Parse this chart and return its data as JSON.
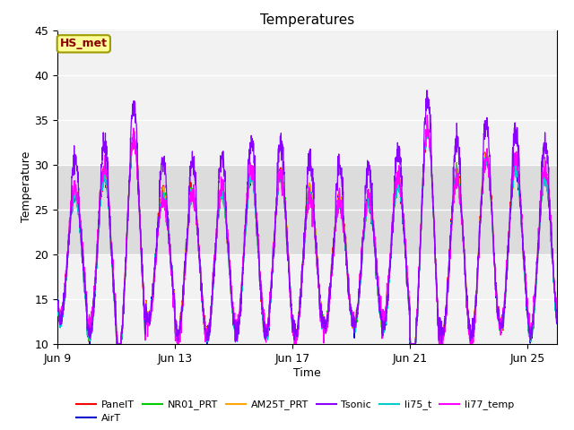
{
  "title": "Temperatures",
  "xlabel": "Time",
  "ylabel": "Temperature",
  "ylim": [
    10,
    45
  ],
  "y_ticks": [
    10,
    15,
    20,
    25,
    30,
    35,
    40,
    45
  ],
  "x_ticks_labels": [
    "Jun 9",
    "Jun 13",
    "Jun 17",
    "Jun 21",
    "Jun 25"
  ],
  "x_ticks_pos": [
    0,
    4,
    8,
    12,
    16
  ],
  "annotation_text": "HS_met",
  "annotation_color": "#8B0000",
  "annotation_bg": "#FFFF99",
  "annotation_border": "#9B9B00",
  "shaded_band": [
    20,
    30
  ],
  "shaded_color": "#DCDCDC",
  "plot_bg": "#F2F2F2",
  "series_colors": {
    "PanelT": "#FF0000",
    "AirT": "#0000CD",
    "NR01_PRT": "#00CC00",
    "AM25T_PRT": "#FFA500",
    "Tsonic": "#8B00FF",
    "li75_t": "#00CCCC",
    "li77_temp": "#FF00FF"
  },
  "legend_order": [
    "PanelT",
    "AirT",
    "NR01_PRT",
    "AM25T_PRT",
    "Tsonic",
    "li75_t",
    "li77_temp"
  ]
}
